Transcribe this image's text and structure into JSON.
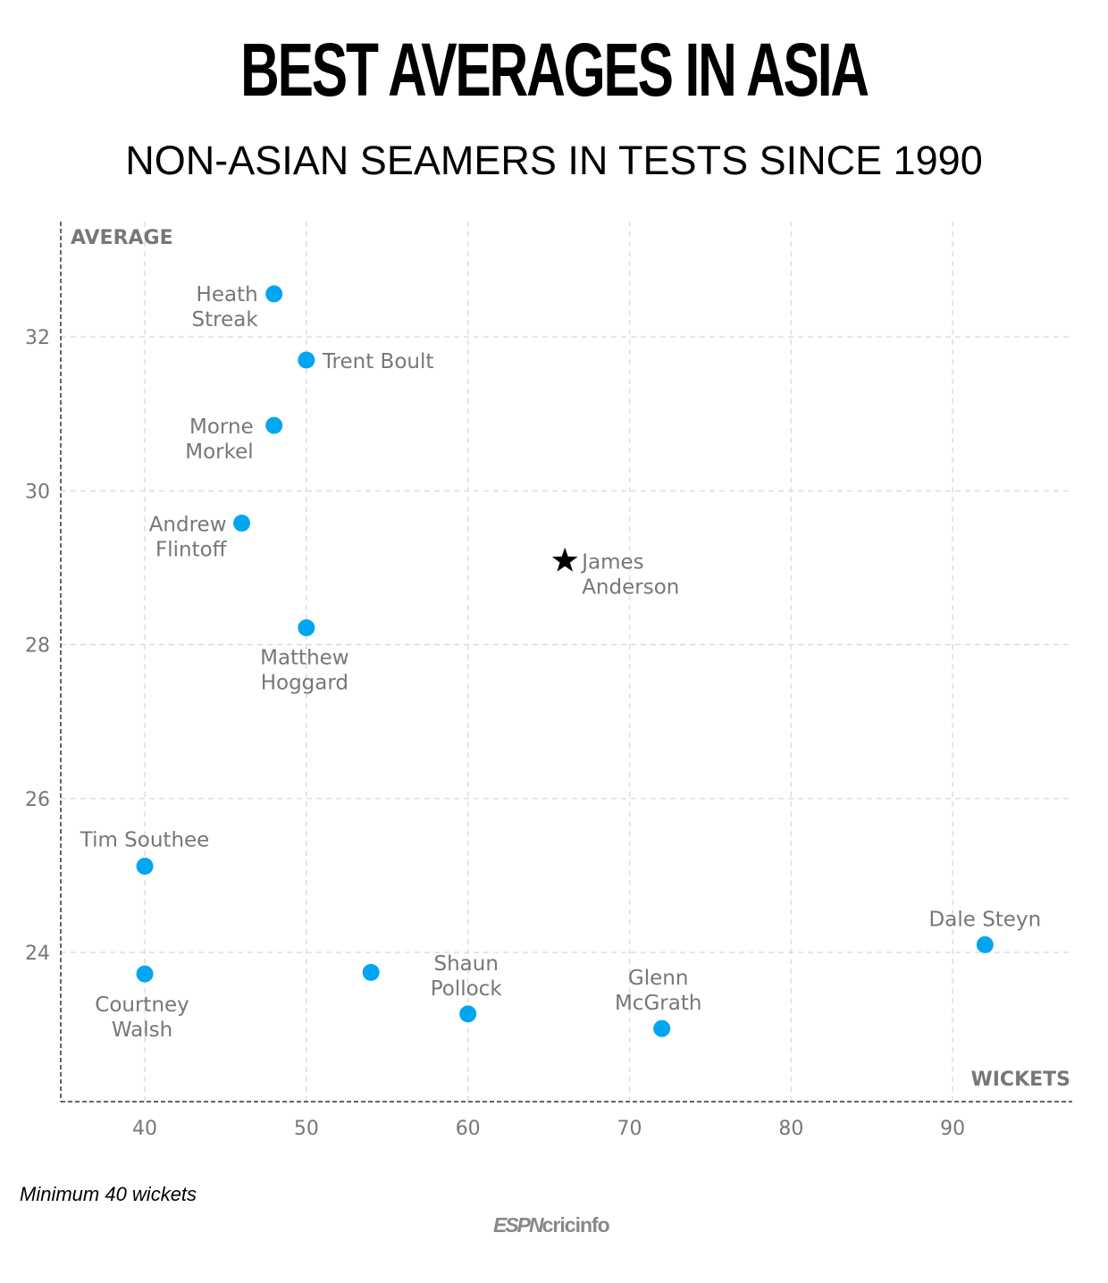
{
  "title": "BEST AVERAGES IN ASIA",
  "subtitle": "NON-ASIAN SEAMERS IN TESTS SINCE 1990",
  "note": "Minimum 40 wickets",
  "logo": {
    "part1": "ESPN",
    "part2": "cricinfo"
  },
  "chart_data": {
    "type": "scatter",
    "title": "BEST AVERAGES IN ASIA",
    "subtitle": "NON-ASIAN SEAMERS IN TESTS SINCE 1990",
    "xlabel": "WICKETS",
    "ylabel": "AVERAGE",
    "xlim": [
      34.8,
      97.4
    ],
    "ylim": [
      22.06,
      33.5
    ],
    "xticks": [
      40,
      50,
      60,
      70,
      80,
      90
    ],
    "yticks": [
      24,
      26,
      28,
      30,
      32
    ],
    "grid": true,
    "colors": {
      "point": "#00a6f0",
      "highlight": "#000000",
      "label": "#777777"
    },
    "points": [
      {
        "name": "Heath Streak",
        "lines": [
          "Heath",
          "Streak"
        ],
        "x": 48,
        "y": 32.56,
        "marker": "circle"
      },
      {
        "name": "Trent Boult",
        "lines": [
          "Trent Boult"
        ],
        "x": 50,
        "y": 31.7,
        "marker": "circle"
      },
      {
        "name": "Morne Morkel",
        "lines": [
          "Morne",
          "Morkel"
        ],
        "x": 48,
        "y": 30.85,
        "marker": "circle"
      },
      {
        "name": "Andrew Flintoff",
        "lines": [
          "Andrew",
          "Flintoff"
        ],
        "x": 46,
        "y": 29.58,
        "marker": "circle"
      },
      {
        "name": "James Anderson",
        "lines": [
          "James",
          "Anderson"
        ],
        "x": 66,
        "y": 29.09,
        "marker": "star"
      },
      {
        "name": "Matthew Hoggard",
        "lines": [
          "Matthew",
          "Hoggard"
        ],
        "x": 50,
        "y": 28.22,
        "marker": "circle"
      },
      {
        "name": "Tim Southee",
        "lines": [
          "Tim Southee"
        ],
        "x": 40,
        "y": 25.12,
        "marker": "circle"
      },
      {
        "name": "Courtney Walsh",
        "lines": [
          "Courtney",
          "Walsh"
        ],
        "x": 40,
        "y": 23.72,
        "marker": "circle"
      },
      {
        "name": "",
        "lines": [],
        "x": 54,
        "y": 23.74,
        "marker": "circle"
      },
      {
        "name": "Shaun Pollock",
        "lines": [
          "Shaun",
          "Pollock"
        ],
        "x": 60,
        "y": 23.2,
        "marker": "circle"
      },
      {
        "name": "Glenn McGrath",
        "lines": [
          "Glenn",
          "McGrath"
        ],
        "x": 72,
        "y": 23.01,
        "marker": "circle"
      },
      {
        "name": "Dale Steyn",
        "lines": [
          "Dale Steyn"
        ],
        "x": 92,
        "y": 24.1,
        "marker": "circle"
      }
    ]
  }
}
